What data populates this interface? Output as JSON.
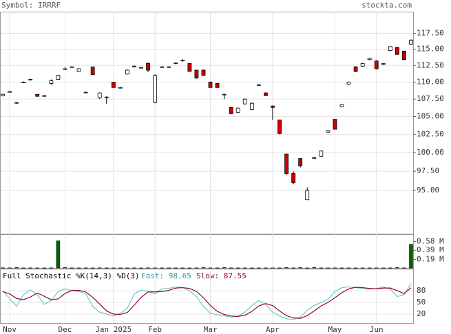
{
  "chart_data": {
    "type": "candlestick",
    "symbol_label": "Symbol: IRRRF",
    "source": "stockta.com",
    "log_scale": true,
    "grid": true,
    "up_color": "#ffffff",
    "down_color": "#cc0000",
    "categories": [
      null,
      "Nov",
      null,
      null,
      null,
      null,
      null,
      null,
      null,
      "Dec",
      null,
      null,
      null,
      null,
      null,
      null,
      "Jan 2025",
      null,
      null,
      null,
      null,
      null,
      "Feb",
      null,
      null,
      null,
      null,
      null,
      null,
      null,
      "Mar",
      null,
      null,
      null,
      null,
      null,
      null,
      null,
      null,
      "Apr",
      null,
      null,
      null,
      null,
      null,
      null,
      null,
      null,
      "May",
      null,
      null,
      null,
      null,
      null,
      "Jun",
      null,
      null,
      null,
      null,
      null
    ],
    "open": [
      108.0,
      108.6,
      107.0,
      110.0,
      110.4,
      108.2,
      108.0,
      109.8,
      110.4,
      112.0,
      112.3,
      111.6,
      108.5,
      112.3,
      107.7,
      107.8,
      110.0,
      109.2,
      111.2,
      112.4,
      112.2,
      112.8,
      107.0,
      112.3,
      112.3,
      112.9,
      113.3,
      112.8,
      111.8,
      111.8,
      110.0,
      109.8,
      108.2,
      106.3,
      105.6,
      106.8,
      106.0,
      109.6,
      108.4,
      106.5,
      104.5,
      99.8,
      97.2,
      99.2,
      93.8,
      99.3,
      99.5,
      102.8,
      104.6,
      106.4,
      109.7,
      112.3,
      112.4,
      113.4,
      113.2,
      112.8,
      114.8,
      115.3,
      114.7,
      115.8
    ],
    "close": [
      108.2,
      108.6,
      107.0,
      110.0,
      110.4,
      107.9,
      108.0,
      110.2,
      111.0,
      112.0,
      112.3,
      112.0,
      108.5,
      111.1,
      108.4,
      107.8,
      109.2,
      109.2,
      111.8,
      112.4,
      112.2,
      111.8,
      111.0,
      112.3,
      112.3,
      112.9,
      113.3,
      111.6,
      110.6,
      111.0,
      109.2,
      109.2,
      108.2,
      105.4,
      106.2,
      107.5,
      106.9,
      109.6,
      108.0,
      106.3,
      102.6,
      97.2,
      96.0,
      98.2,
      95.0,
      99.3,
      100.2,
      103.0,
      103.2,
      106.7,
      110.0,
      111.6,
      112.8,
      113.6,
      112.0,
      112.8,
      115.4,
      114.2,
      113.4,
      116.4
    ],
    "high": [
      108.3,
      108.7,
      107.1,
      110.1,
      110.5,
      108.2,
      108.1,
      110.4,
      111.1,
      112.3,
      112.4,
      112.1,
      108.6,
      112.3,
      108.5,
      107.9,
      110.0,
      109.3,
      111.9,
      112.5,
      112.3,
      113.0,
      111.2,
      112.4,
      112.4,
      113.0,
      113.5,
      112.9,
      111.8,
      111.9,
      110.1,
      109.9,
      108.3,
      106.4,
      106.3,
      107.6,
      107.0,
      109.7,
      108.5,
      106.6,
      104.5,
      99.8,
      97.5,
      99.2,
      95.4,
      99.4,
      100.3,
      103.1,
      104.6,
      106.8,
      110.1,
      112.4,
      112.9,
      113.7,
      113.3,
      112.9,
      115.5,
      115.4,
      114.8,
      116.6
    ],
    "low": [
      107.9,
      108.5,
      106.8,
      109.9,
      110.3,
      107.9,
      107.9,
      109.6,
      110.3,
      111.8,
      112.2,
      111.5,
      108.4,
      111.1,
      107.5,
      106.8,
      109.2,
      109.1,
      111.1,
      112.2,
      112.1,
      111.5,
      106.9,
      112.2,
      112.2,
      112.7,
      113.1,
      111.6,
      110.5,
      111.0,
      109.2,
      109.2,
      107.5,
      105.3,
      105.5,
      106.7,
      105.9,
      109.5,
      108.0,
      104.5,
      102.5,
      97.0,
      95.8,
      98.0,
      93.8,
      99.2,
      99.4,
      102.7,
      103.2,
      106.3,
      109.6,
      111.5,
      112.3,
      113.3,
      111.9,
      112.6,
      114.7,
      114.1,
      113.3,
      115.7
    ],
    "ylim": [
      89.6,
      121
    ],
    "yticks": [
      {
        "value": 117.5,
        "label": "117.50"
      },
      {
        "value": 115,
        "label": "115.00"
      },
      {
        "value": 112.5,
        "label": "112.50"
      },
      {
        "value": 110,
        "label": "110.00"
      },
      {
        "value": 107.5,
        "label": "107.50"
      },
      {
        "value": 105,
        "label": "105.00"
      },
      {
        "value": 102.5,
        "label": "102.50"
      },
      {
        "value": 100,
        "label": "100.00"
      },
      {
        "value": 97.5,
        "label": "97.50"
      },
      {
        "value": 95,
        "label": "95.00"
      }
    ],
    "volume": {
      "color": "#006600",
      "ylim": [
        0,
        0.74
      ],
      "yticks": [
        {
          "value": 0.58,
          "label": "0.58 M"
        },
        {
          "value": 0.39,
          "label": "0.39 M"
        },
        {
          "value": 0.19,
          "label": "0.19 M"
        }
      ],
      "values": [
        0.005,
        0.004,
        0.012,
        0.003,
        0.004,
        0.004,
        0.003,
        0.005,
        0.6,
        0.012,
        0.004,
        0.003,
        0.004,
        0.003,
        0.005,
        0.004,
        0.003,
        0.004,
        0.003,
        0.004,
        0.003,
        0.005,
        0.004,
        0.003,
        0.004,
        0.003,
        0.004,
        0.003,
        0.004,
        0.01,
        0.003,
        0.004,
        0.01,
        0.004,
        0.003,
        0.004,
        0.003,
        0.004,
        0.003,
        0.004,
        0.004,
        0.012,
        0.004,
        0.012,
        0.003,
        0.012,
        0.004,
        0.003,
        0.004,
        0.003,
        0.004,
        0.003,
        0.004,
        0.003,
        0.004,
        0.003,
        0.004,
        0.01,
        0.004,
        0.52
      ]
    },
    "stochastic": {
      "title": "Full Stochastic %K(14,3) %D(3)",
      "fast_label": "Fast: 98.65",
      "slow_label": "Slow: 87.55",
      "ylim": [
        -3,
        135
      ],
      "yticks": [
        80,
        50,
        20
      ],
      "series": [
        {
          "name": "%K",
          "color": "#66cccc",
          "values": [
            80,
            60,
            40,
            70,
            82,
            70,
            45,
            55,
            78,
            85,
            80,
            78,
            72,
            40,
            25,
            20,
            15,
            22,
            35,
            72,
            82,
            78,
            72,
            85,
            86,
            90,
            88,
            80,
            65,
            40,
            22,
            18,
            16,
            12,
            14,
            25,
            42,
            55,
            45,
            25,
            15,
            8,
            6,
            12,
            30,
            42,
            50,
            58,
            78,
            88,
            90,
            88,
            86,
            84,
            86,
            90,
            84,
            65,
            70,
            98.65
          ]
        },
        {
          "name": "%D",
          "color": "#990033",
          "values": [
            78,
            72,
            60,
            57,
            64,
            74,
            66,
            57,
            59,
            73,
            81,
            81,
            77,
            63,
            46,
            28,
            20,
            19,
            24,
            43,
            63,
            77,
            77,
            78,
            81,
            87,
            88,
            86,
            78,
            62,
            42,
            27,
            19,
            15,
            14,
            17,
            27,
            41,
            47,
            42,
            28,
            16,
            10,
            9,
            16,
            28,
            41,
            50,
            62,
            75,
            85,
            89,
            88,
            86,
            85,
            87,
            87,
            80,
            73,
            87.55
          ]
        }
      ]
    }
  }
}
